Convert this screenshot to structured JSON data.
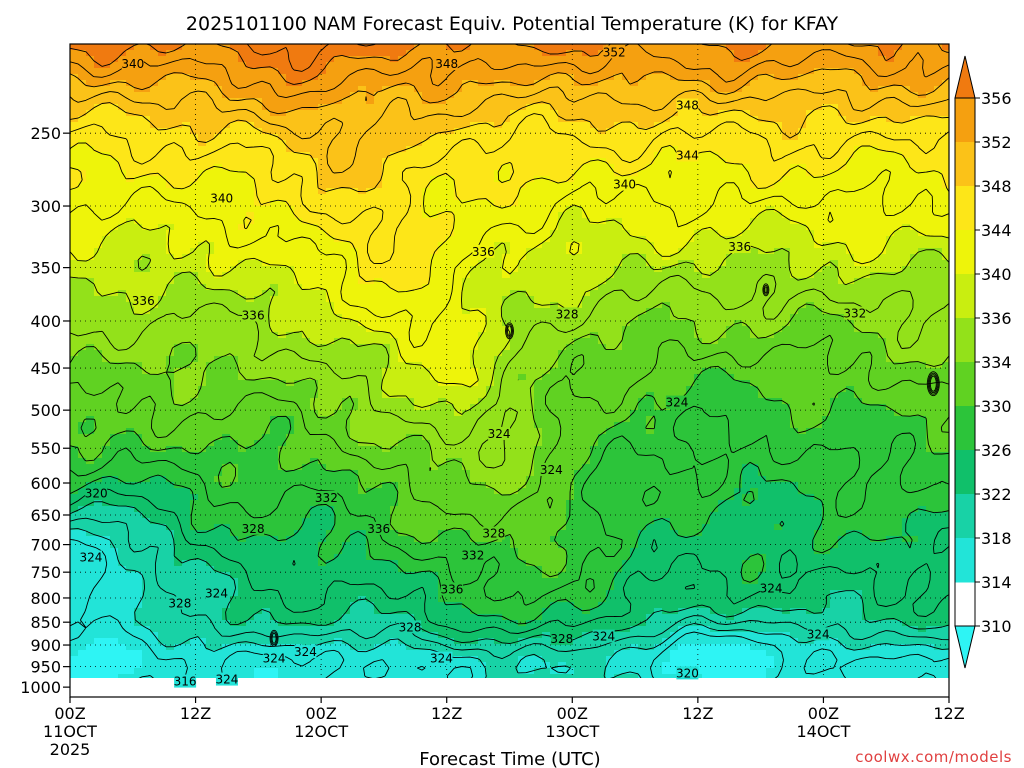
{
  "title": "2025101100 NAM Forecast Equiv. Potential Temperature (K) for KFAY",
  "credit": "coolwx.com/models",
  "colors": {
    "ground": "#9c4a2a",
    "background": "#ffffff",
    "contour_line": "#000000",
    "credit": "#e04040"
  },
  "chart_data": {
    "type": "heatmap",
    "title": "2025101100 NAM Forecast Equiv. Potential Temperature (K) for KFAY",
    "xlabel": "Forecast Time (UTC)",
    "ylabel": "",
    "y_axis": "pressure (hPa), reversed, log scale",
    "xlim": [
      0,
      84
    ],
    "ylim": [
      1025,
      200
    ],
    "x_ticks": [
      {
        "hours": 0,
        "label": "00Z",
        "date": "11OCT",
        "year": "2025"
      },
      {
        "hours": 12,
        "label": "12Z",
        "date": "",
        "year": ""
      },
      {
        "hours": 24,
        "label": "00Z",
        "date": "12OCT",
        "year": ""
      },
      {
        "hours": 36,
        "label": "12Z",
        "date": "",
        "year": ""
      },
      {
        "hours": 48,
        "label": "00Z",
        "date": "13OCT",
        "year": ""
      },
      {
        "hours": 60,
        "label": "12Z",
        "date": "",
        "year": ""
      },
      {
        "hours": 72,
        "label": "00Z",
        "date": "14OCT",
        "year": ""
      },
      {
        "hours": 84,
        "label": "12Z",
        "date": "",
        "year": ""
      }
    ],
    "y_ticks": [
      250,
      300,
      350,
      400,
      450,
      500,
      550,
      600,
      650,
      700,
      750,
      800,
      850,
      900,
      950,
      1000
    ],
    "grid": true,
    "colorbar": {
      "placement": "right",
      "unit": "K",
      "ticks": [
        356,
        352,
        348,
        344,
        340,
        336,
        334,
        330,
        326,
        322,
        318,
        314,
        310
      ],
      "colors": [
        "#f07a10",
        "#f5a010",
        "#fbc218",
        "#fde618",
        "#eef40a",
        "#c9ee10",
        "#93e11a",
        "#60d222",
        "#2cc43a",
        "#10c06a",
        "#18d2a6",
        "#22e4d8",
        "#2ef4f4"
      ]
    },
    "contour_labels": [
      {
        "x": 6,
        "p": 210,
        "v": "340"
      },
      {
        "x": 36,
        "p": 210,
        "v": "348"
      },
      {
        "x": 52,
        "p": 204,
        "v": "352"
      },
      {
        "x": 59,
        "p": 233,
        "v": "348"
      },
      {
        "x": 59,
        "p": 264,
        "v": "344"
      },
      {
        "x": 53,
        "p": 284,
        "v": "340"
      },
      {
        "x": 14.5,
        "p": 294,
        "v": "340"
      },
      {
        "x": 39.5,
        "p": 336,
        "v": "336"
      },
      {
        "x": 64,
        "p": 332,
        "v": "336"
      },
      {
        "x": 7,
        "p": 380,
        "v": "336"
      },
      {
        "x": 17.5,
        "p": 394,
        "v": "336"
      },
      {
        "x": 47.5,
        "p": 393,
        "v": "328"
      },
      {
        "x": 75,
        "p": 392,
        "v": "332"
      },
      {
        "x": 58,
        "p": 490,
        "v": "324"
      },
      {
        "x": 41,
        "p": 530,
        "v": "324"
      },
      {
        "x": 46,
        "p": 580,
        "v": "324"
      },
      {
        "x": 2.5,
        "p": 615,
        "v": "320"
      },
      {
        "x": 24.5,
        "p": 622,
        "v": "332"
      },
      {
        "x": 17.5,
        "p": 672,
        "v": "328"
      },
      {
        "x": 29.5,
        "p": 672,
        "v": "336"
      },
      {
        "x": 40.5,
        "p": 680,
        "v": "328"
      },
      {
        "x": 38.5,
        "p": 718,
        "v": "332"
      },
      {
        "x": 2,
        "p": 722,
        "v": "324"
      },
      {
        "x": 36.5,
        "p": 782,
        "v": "336"
      },
      {
        "x": 14,
        "p": 790,
        "v": "324"
      },
      {
        "x": 10.5,
        "p": 810,
        "v": "328"
      },
      {
        "x": 67,
        "p": 780,
        "v": "324"
      },
      {
        "x": 32.5,
        "p": 860,
        "v": "328"
      },
      {
        "x": 47,
        "p": 885,
        "v": "328"
      },
      {
        "x": 51,
        "p": 880,
        "v": "324"
      },
      {
        "x": 71.5,
        "p": 875,
        "v": "324"
      },
      {
        "x": 22.5,
        "p": 915,
        "v": "324"
      },
      {
        "x": 19.5,
        "p": 930,
        "v": "324"
      },
      {
        "x": 35.5,
        "p": 930,
        "v": "324"
      },
      {
        "x": 15,
        "p": 980,
        "v": "324"
      },
      {
        "x": 11,
        "p": 985,
        "v": "316"
      },
      {
        "x": 59,
        "p": 965,
        "v": "320"
      }
    ]
  }
}
